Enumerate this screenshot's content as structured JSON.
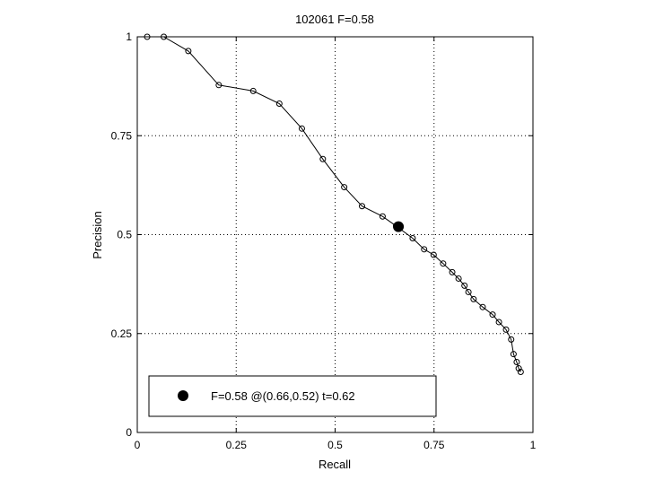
{
  "chart_data": {
    "type": "line",
    "title": "102061 F=0.58",
    "xlabel": "Recall",
    "ylabel": "Precision",
    "xlim": [
      0,
      1
    ],
    "ylim": [
      0,
      1
    ],
    "grid": true,
    "xticks": [
      {
        "value": 0,
        "label": "0"
      },
      {
        "value": 0.25,
        "label": "0.25"
      },
      {
        "value": 0.5,
        "label": "0.5"
      },
      {
        "value": 0.75,
        "label": "0.75"
      },
      {
        "value": 1,
        "label": "1"
      }
    ],
    "yticks": [
      {
        "value": 0,
        "label": "0"
      },
      {
        "value": 0.25,
        "label": "0.25"
      },
      {
        "value": 0.5,
        "label": "0.5"
      },
      {
        "value": 0.75,
        "label": "0.75"
      },
      {
        "value": 1,
        "label": "1"
      }
    ],
    "series": [
      {
        "marker": "open-circle",
        "color": "#000000",
        "points": [
          [
            0.025,
            1.0
          ],
          [
            0.067,
            1.0
          ],
          [
            0.129,
            0.964
          ],
          [
            0.206,
            0.878
          ],
          [
            0.293,
            0.863
          ],
          [
            0.359,
            0.831
          ],
          [
            0.416,
            0.768
          ],
          [
            0.469,
            0.691
          ],
          [
            0.523,
            0.62
          ],
          [
            0.568,
            0.572
          ],
          [
            0.62,
            0.546
          ],
          [
            0.654,
            0.522
          ],
          [
            0.696,
            0.491
          ],
          [
            0.725,
            0.463
          ],
          [
            0.749,
            0.449
          ],
          [
            0.773,
            0.427
          ],
          [
            0.796,
            0.405
          ],
          [
            0.812,
            0.389
          ],
          [
            0.827,
            0.371
          ],
          [
            0.837,
            0.355
          ],
          [
            0.85,
            0.337
          ],
          [
            0.873,
            0.317
          ],
          [
            0.898,
            0.298
          ],
          [
            0.914,
            0.279
          ],
          [
            0.932,
            0.26
          ],
          [
            0.945,
            0.235
          ],
          [
            0.951,
            0.198
          ],
          [
            0.959,
            0.178
          ],
          [
            0.964,
            0.162
          ],
          [
            0.969,
            0.153
          ]
        ]
      }
    ],
    "highlight": {
      "x": 0.66,
      "y": 0.52,
      "marker": "filled-circle",
      "color": "#000000"
    },
    "legend": {
      "placement": "bottom-left",
      "label": "F=0.58 @(0.66,0.52) t=0.62"
    }
  }
}
